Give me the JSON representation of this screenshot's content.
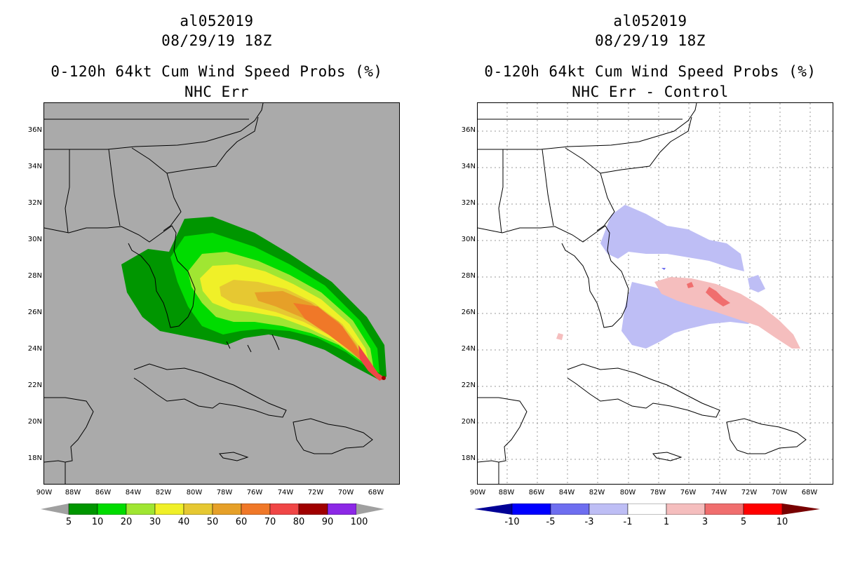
{
  "left": {
    "title1": "al052019",
    "title2": "08/29/19 18Z",
    "title3": "0-120h 64kt Cum Wind Speed Probs (%)",
    "title4": "NHC Err",
    "lat_labels": [
      "36N",
      "34N",
      "32N",
      "30N",
      "28N",
      "26N",
      "24N",
      "22N",
      "20N",
      "18N"
    ],
    "lon_labels": [
      "90W",
      "88W",
      "86W",
      "84W",
      "82W",
      "80W",
      "78W",
      "76W",
      "74W",
      "72W",
      "70W",
      "68W"
    ],
    "colorbar": {
      "labels": [
        "5",
        "10",
        "20",
        "30",
        "40",
        "50",
        "60",
        "70",
        "80",
        "90",
        "100"
      ],
      "colors": [
        "#009600",
        "#00dc00",
        "#a0e632",
        "#f0f028",
        "#e6c832",
        "#e6a028",
        "#f07828",
        "#f04646",
        "#a00000",
        "#8c28e6"
      ],
      "under_color": "#a0a0a0",
      "over_color": "#a0a0a0"
    }
  },
  "right": {
    "title1": "al052019",
    "title2": "08/29/19 18Z",
    "title3": "0-120h 64kt Cum Wind Speed Probs (%)",
    "title4": "NHC Err - Control",
    "lat_labels": [
      "36N",
      "34N",
      "32N",
      "30N",
      "28N",
      "26N",
      "24N",
      "22N",
      "20N",
      "18N"
    ],
    "lon_labels": [
      "90W",
      "88W",
      "86W",
      "84W",
      "82W",
      "80W",
      "78W",
      "76W",
      "74W",
      "72W",
      "70W",
      "68W"
    ],
    "colorbar": {
      "labels": [
        "-10",
        "-5",
        "-3",
        "-1",
        "1",
        "3",
        "5",
        "10"
      ],
      "colors": [
        "#0000ff",
        "#6e6ef0",
        "#bebef5",
        "#ffffff",
        "#f5bebe",
        "#f06e6e",
        "#ff0000"
      ],
      "under_color": "#000096",
      "over_color": "#780000"
    }
  }
}
